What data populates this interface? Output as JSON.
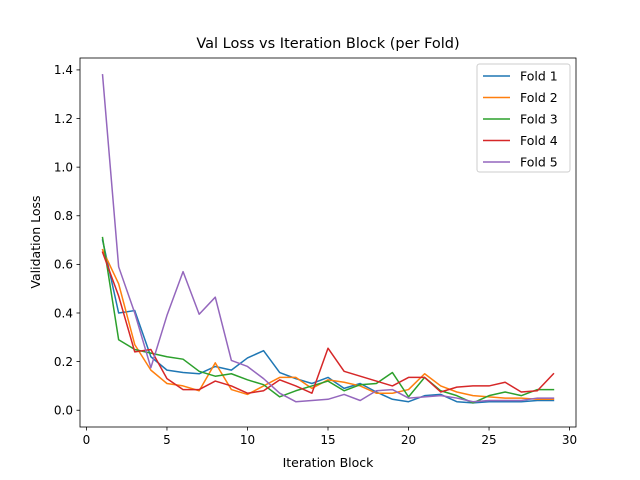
{
  "chart_data": {
    "type": "line",
    "title": "Val Loss vs Iteration Block (per Fold)",
    "xlabel": "Iteration Block",
    "ylabel": "Validation Loss",
    "xlim": [
      -0.4,
      30.4
    ],
    "ylim": [
      -0.069,
      1.449
    ],
    "xticks": [
      0,
      5,
      10,
      15,
      20,
      25,
      30
    ],
    "yticks": [
      0.0,
      0.2,
      0.4,
      0.6,
      0.8,
      1.0,
      1.2,
      1.4
    ],
    "xtick_labels": [
      "0",
      "5",
      "10",
      "15",
      "20",
      "25",
      "30"
    ],
    "ytick_labels": [
      "0.0",
      "0.2",
      "0.4",
      "0.6",
      "0.8",
      "1.0",
      "1.2",
      "1.4"
    ],
    "grid": false,
    "legend_position": "top-right",
    "x": [
      1,
      2,
      3,
      4,
      5,
      6,
      7,
      8,
      9,
      10,
      11,
      12,
      13,
      14,
      15,
      16,
      17,
      18,
      19,
      20,
      21,
      22,
      23,
      24,
      25,
      26,
      27,
      28,
      29
    ],
    "series": [
      {
        "name": "Fold 1",
        "color": "#1f77b4",
        "values": [
          0.7,
          0.4,
          0.41,
          0.22,
          0.165,
          0.155,
          0.15,
          0.18,
          0.165,
          0.215,
          0.245,
          0.155,
          0.13,
          0.11,
          0.135,
          0.09,
          0.11,
          0.075,
          0.045,
          0.035,
          0.06,
          0.065,
          0.035,
          0.03,
          0.035,
          0.035,
          0.035,
          0.04,
          0.04
        ]
      },
      {
        "name": "Fold 2",
        "color": "#ff7f0e",
        "values": [
          0.66,
          0.52,
          0.27,
          0.165,
          0.11,
          0.1,
          0.08,
          0.195,
          0.085,
          0.065,
          0.1,
          0.135,
          0.135,
          0.09,
          0.125,
          0.115,
          0.1,
          0.07,
          0.07,
          0.085,
          0.15,
          0.1,
          0.075,
          0.06,
          0.055,
          0.05,
          0.05,
          0.045,
          0.045
        ]
      },
      {
        "name": "Fold 3",
        "color": "#2ca02c",
        "values": [
          0.71,
          0.29,
          0.25,
          0.235,
          0.22,
          0.21,
          0.16,
          0.14,
          0.15,
          0.125,
          0.105,
          0.055,
          0.08,
          0.1,
          0.12,
          0.08,
          0.105,
          0.11,
          0.155,
          0.055,
          0.135,
          0.08,
          0.06,
          0.03,
          0.06,
          0.075,
          0.06,
          0.085,
          0.085
        ]
      },
      {
        "name": "Fold 4",
        "color": "#d62728",
        "values": [
          0.65,
          0.47,
          0.24,
          0.25,
          0.13,
          0.085,
          0.085,
          0.12,
          0.1,
          0.07,
          0.08,
          0.125,
          0.1,
          0.07,
          0.255,
          0.16,
          0.14,
          0.12,
          0.1,
          0.135,
          0.135,
          0.075,
          0.095,
          0.1,
          0.1,
          0.115,
          0.075,
          0.08,
          0.15
        ]
      },
      {
        "name": "Fold 5",
        "color": "#9467bd",
        "values": [
          1.38,
          0.59,
          0.4,
          0.175,
          0.39,
          0.57,
          0.395,
          0.465,
          0.205,
          0.18,
          0.13,
          0.07,
          0.035,
          0.04,
          0.045,
          0.065,
          0.04,
          0.08,
          0.085,
          0.05,
          0.055,
          0.06,
          0.05,
          0.035,
          0.04,
          0.04,
          0.04,
          0.05,
          0.05
        ]
      }
    ]
  }
}
